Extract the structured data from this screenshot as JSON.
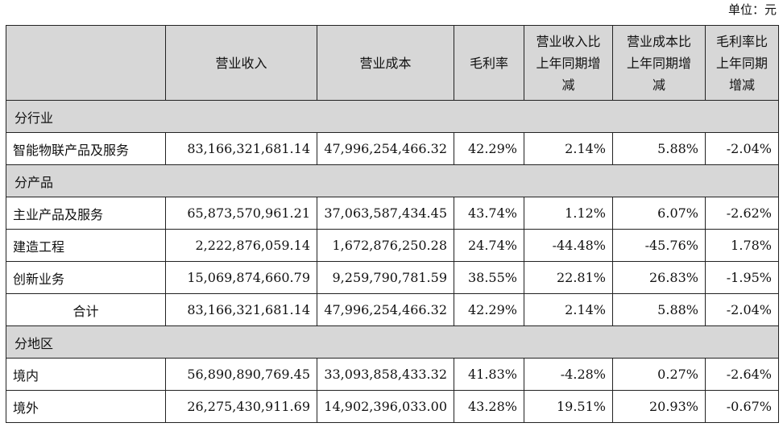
{
  "unit_label": "单位：元",
  "header": {
    "c1": "营业收入",
    "c2": "营业成本",
    "c3": "毛利率",
    "c4": [
      "营业收入比",
      "上年同期增",
      "减"
    ],
    "c5": [
      "营业成本比",
      "上年同期增",
      "减"
    ],
    "c6": [
      "毛利率比",
      "上年同期",
      "增减"
    ]
  },
  "sections": {
    "industry": {
      "title": "分行业",
      "rows": [
        {
          "name": "智能物联产品及服务",
          "revenue": "83,166,321,681.14",
          "cost": "47,996,254,466.32",
          "margin": "42.29%",
          "rev_change": "2.14%",
          "cost_change": "5.88%",
          "margin_change": "-2.04%"
        }
      ]
    },
    "product": {
      "title": "分产品",
      "rows": [
        {
          "name": "主业产品及服务",
          "revenue": "65,873,570,961.21",
          "cost": "37,063,587,434.45",
          "margin": "43.74%",
          "rev_change": "1.12%",
          "cost_change": "6.07%",
          "margin_change": "-2.62%"
        },
        {
          "name": "建造工程",
          "revenue": "2,222,876,059.14",
          "cost": "1,672,876,250.28",
          "margin": "24.74%",
          "rev_change": "-44.48%",
          "cost_change": "-45.76%",
          "margin_change": "1.78%"
        },
        {
          "name": "创新业务",
          "revenue": "15,069,874,660.79",
          "cost": "9,259,790,781.59",
          "margin": "38.55%",
          "rev_change": "22.81%",
          "cost_change": "26.83%",
          "margin_change": "-1.95%"
        },
        {
          "name": "合计",
          "revenue": "83,166,321,681.14",
          "cost": "47,996,254,466.32",
          "margin": "42.29%",
          "rev_change": "2.14%",
          "cost_change": "5.88%",
          "margin_change": "-2.04%"
        }
      ]
    },
    "region": {
      "title": "分地区",
      "rows": [
        {
          "name": "境内",
          "revenue": "56,890,890,769.45",
          "cost": "33,093,858,433.32",
          "margin": "41.83%",
          "rev_change": "-4.28%",
          "cost_change": "0.27%",
          "margin_change": "-2.64%"
        },
        {
          "name": "境外",
          "revenue": "26,275,430,911.69",
          "cost": "14,902,396,033.00",
          "margin": "43.28%",
          "rev_change": "19.51%",
          "cost_change": "20.93%",
          "margin_change": "-0.67%"
        }
      ]
    }
  }
}
